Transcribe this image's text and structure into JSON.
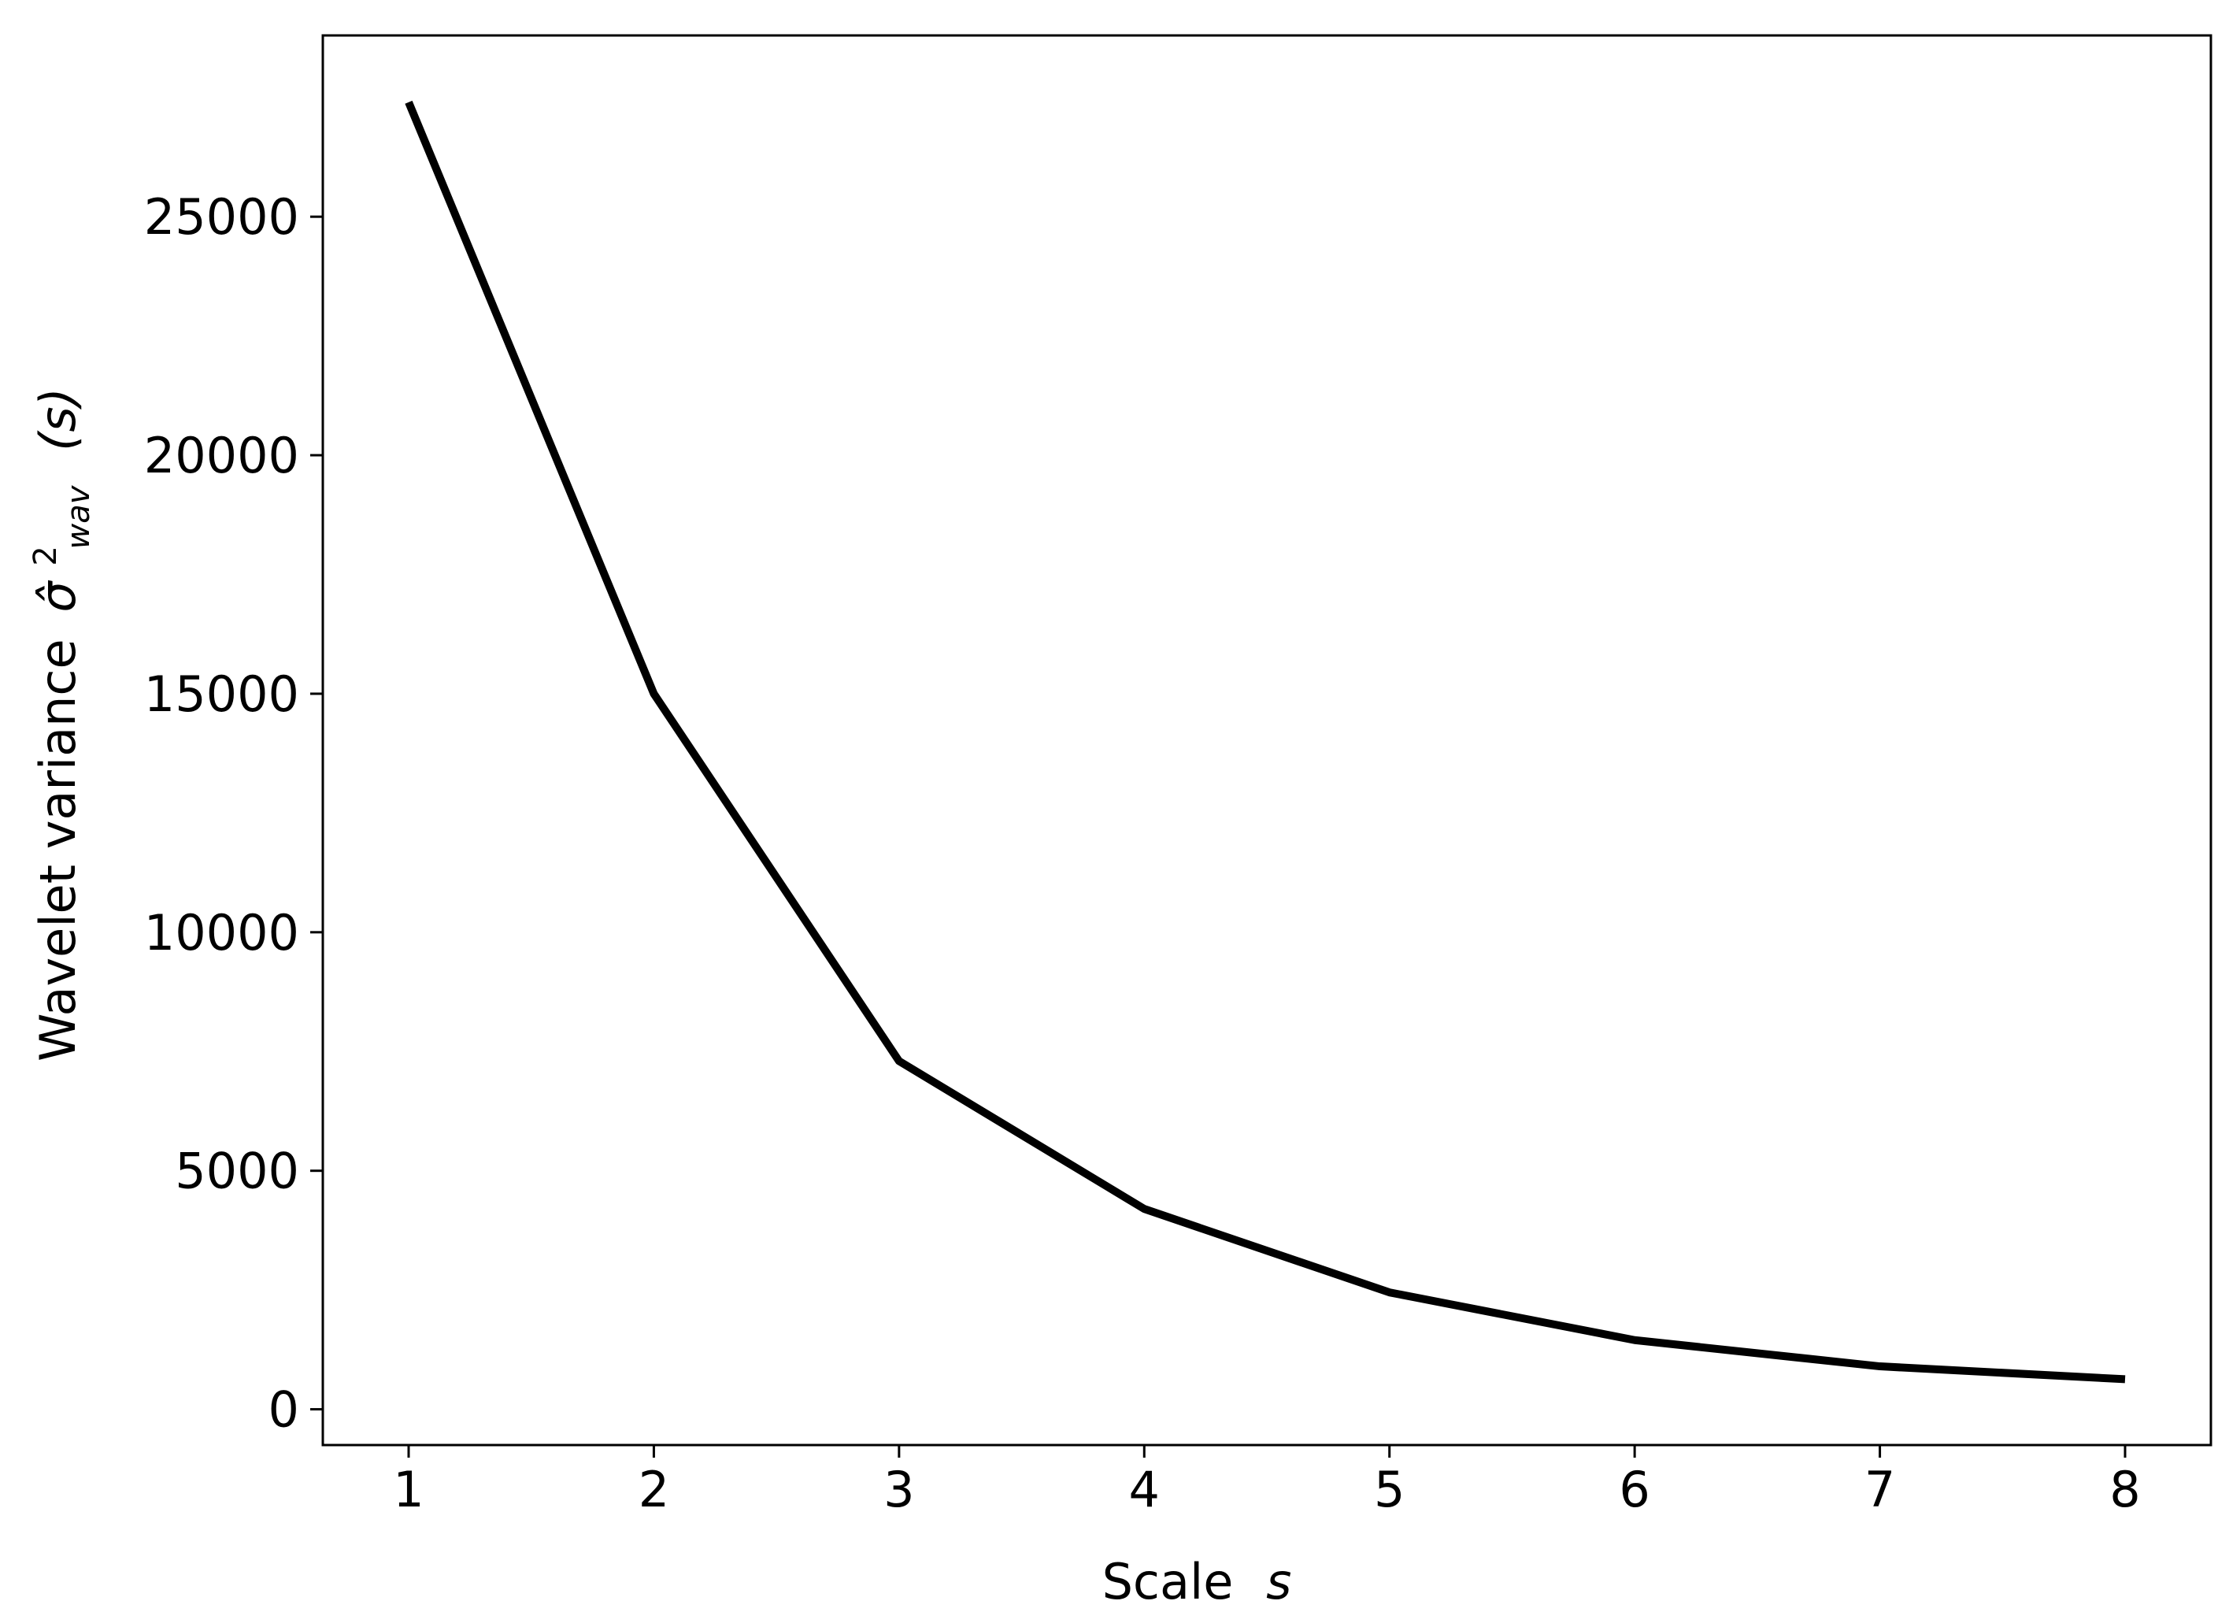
{
  "chart_data": {
    "type": "line",
    "title": "",
    "xlabel": {
      "text": "Scale",
      "symbol": "s"
    },
    "ylabel": {
      "text": "Wavelet variance",
      "symbol": "σ̂",
      "superscript": "2",
      "subscript": "wav",
      "argument": "(s)"
    },
    "x": [
      1,
      2,
      3,
      4,
      5,
      6,
      7,
      8
    ],
    "series": [
      {
        "values": [
          27400,
          15000,
          7300,
          4200,
          2450,
          1450,
          900,
          630
        ],
        "color": "#000000"
      }
    ],
    "xlim": [
      0.65,
      8.35
    ],
    "ylim": [
      -750,
      28800
    ],
    "xticks": [
      1,
      2,
      3,
      4,
      5,
      6,
      7,
      8
    ],
    "xtick_labels": [
      "1",
      "2",
      "3",
      "4",
      "5",
      "6",
      "7",
      "8"
    ],
    "yticks": [
      0,
      5000,
      10000,
      15000,
      20000,
      25000
    ],
    "ytick_labels": [
      "0",
      "5000",
      "10000",
      "15000",
      "20000",
      "25000"
    ],
    "grid": false,
    "legend": null
  }
}
